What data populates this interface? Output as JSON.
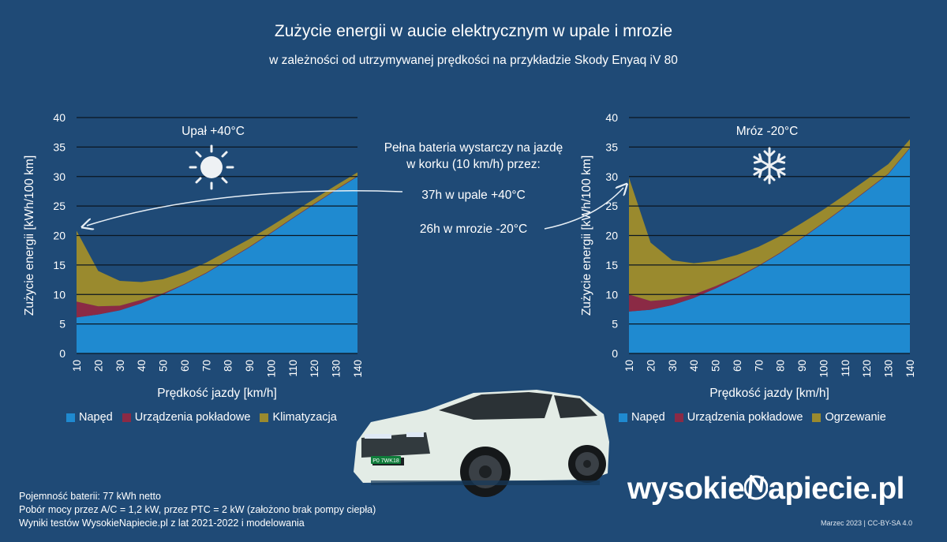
{
  "title": "Zużycie energii w aucie elektrycznym w upale i mrozie",
  "subtitle": "w zależności od utrzymywanej prędkości na przykładzie Skody Enyaq iV 80",
  "annotation": {
    "line1": "Pełna bateria wystarczy na jazdę",
    "line2": "w korku (10 km/h) przez:",
    "hot": "37h w upale +40°C",
    "cold": "26h w mrozie -20°C"
  },
  "colors": {
    "background": "#1f4a76",
    "drive": "#1f8ad0",
    "onboard": "#8b2a45",
    "climate": "#9a8a2e"
  },
  "license_plate": "P0 7WK18",
  "footer": {
    "line1": "Pojemność baterii: 77 kWh netto",
    "line2": "Pobór mocy przez A/C = 1,2 kW, przez PTC = 2 kW (założono brak pompy ciepła)",
    "line3": "Wyniki testów WysokieNapiecie.pl z lat 2021-2022 i modelowania"
  },
  "brand": {
    "left": "wysokie",
    "right": "apiecie.pl"
  },
  "credit": "Marzec 2023  |  CC-BY-SA 4.0",
  "chart_data": [
    {
      "type": "area",
      "panel_label": "Upał +40°C",
      "icon": "sun-icon",
      "xlabel": "Prędkość jazdy [km/h]",
      "ylabel": "Zużycie    energii    [kWh/100 km]",
      "x": [
        10,
        20,
        30,
        40,
        50,
        60,
        70,
        80,
        90,
        100,
        110,
        120,
        130,
        140
      ],
      "xlim": [
        10,
        140
      ],
      "ylim": [
        0,
        40
      ],
      "yticks": [
        0,
        5,
        10,
        15,
        20,
        25,
        30,
        35,
        40
      ],
      "grid": true,
      "stacked": true,
      "legend_position": "bottom",
      "series": [
        {
          "name": "Napęd",
          "color": "#1f8ad0",
          "values": [
            6.1,
            6.6,
            7.3,
            8.5,
            10.0,
            11.7,
            13.6,
            15.8,
            18.0,
            20.4,
            22.9,
            25.3,
            27.7,
            30.0
          ]
        },
        {
          "name": "Urządzenia pokładowe",
          "color": "#8b2a45",
          "values": [
            2.7,
            1.4,
            0.8,
            0.6,
            0.2,
            0.1,
            0.1,
            0.1,
            0.1,
            0.1,
            0.1,
            0.1,
            0.1,
            0.1
          ]
        },
        {
          "name": "Klimatyzacja",
          "color": "#9a8a2e",
          "values": [
            12.0,
            6.0,
            4.2,
            3.0,
            2.4,
            2.0,
            1.7,
            1.5,
            1.3,
            1.1,
            0.9,
            0.8,
            0.7,
            0.6
          ]
        }
      ]
    },
    {
      "type": "area",
      "panel_label": "Mróz -20°C",
      "icon": "snowflake-icon",
      "xlabel": "Prędkość jazdy [km/h]",
      "ylabel": "Zużycie    energii    [kWh/100 km]",
      "x": [
        10,
        20,
        30,
        40,
        50,
        60,
        70,
        80,
        90,
        100,
        110,
        120,
        130,
        140
      ],
      "xlim": [
        10,
        140
      ],
      "ylim": [
        0,
        40
      ],
      "yticks": [
        0,
        5,
        10,
        15,
        20,
        25,
        30,
        35,
        40
      ],
      "grid": true,
      "stacked": true,
      "legend_position": "bottom",
      "series": [
        {
          "name": "Napęd",
          "color": "#1f8ad0",
          "values": [
            7.1,
            7.4,
            8.2,
            9.4,
            11.0,
            12.8,
            14.8,
            17.0,
            19.5,
            22.1,
            24.8,
            27.6,
            30.4,
            34.8
          ]
        },
        {
          "name": "Urządzenia pokładowe",
          "color": "#8b2a45",
          "values": [
            2.9,
            1.5,
            1.0,
            0.6,
            0.4,
            0.2,
            0.1,
            0.1,
            0.1,
            0.1,
            0.1,
            0.1,
            0.1,
            0.1
          ]
        },
        {
          "name": "Ogrzewanie",
          "color": "#9a8a2e",
          "values": [
            19.8,
            9.9,
            6.6,
            5.3,
            4.3,
            3.7,
            3.2,
            2.8,
            2.5,
            2.2,
            2.0,
            1.8,
            1.6,
            1.4
          ]
        }
      ]
    }
  ]
}
